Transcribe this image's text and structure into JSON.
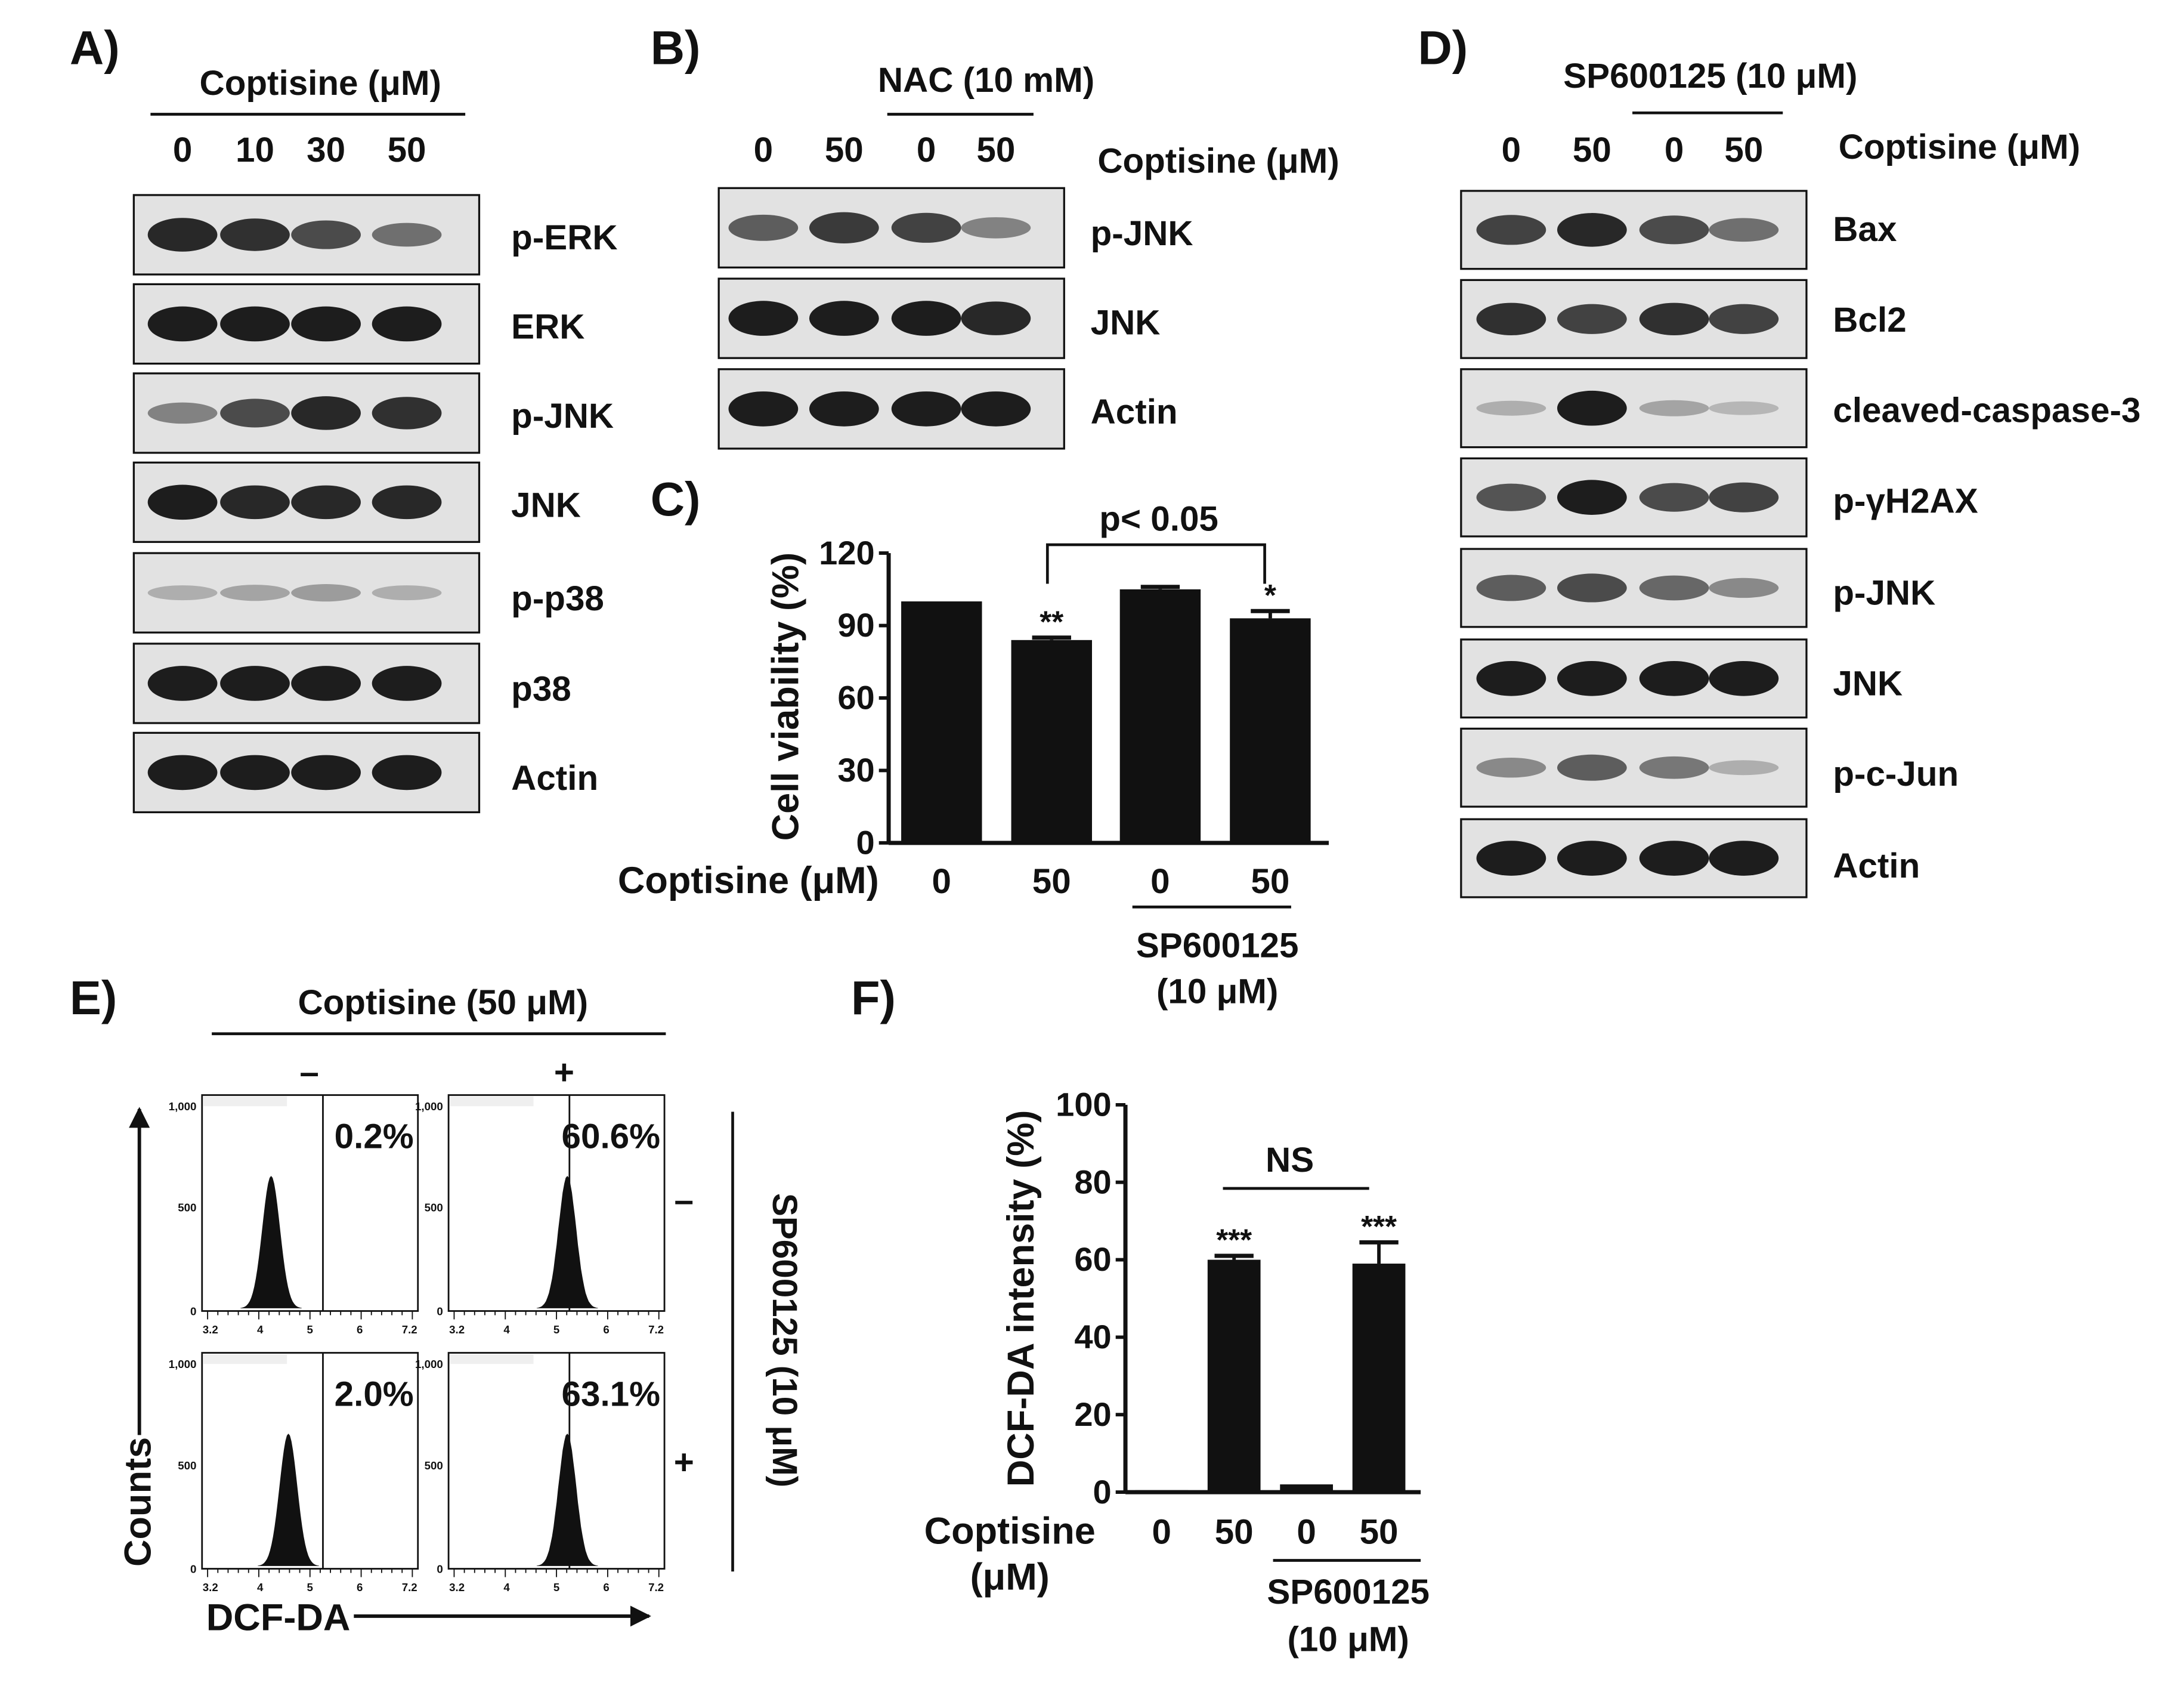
{
  "colors": {
    "ink": "#111111",
    "blot_background": "#e2e2e2",
    "band": "#151515"
  },
  "panel_letters": [
    "A)",
    "B)",
    "C)",
    "D)",
    "E)",
    "F)"
  ],
  "panel_a": {
    "treatment": "Coptisine (μM)",
    "doses": [
      "0",
      "10",
      "30",
      "50"
    ],
    "blots": [
      {
        "label": "p-ERK",
        "band_intensity": [
          0.9,
          0.85,
          0.7,
          0.5
        ]
      },
      {
        "label": "ERK",
        "band_intensity": [
          0.95,
          0.95,
          0.95,
          0.95
        ]
      },
      {
        "label": "p-JNK",
        "band_intensity": [
          0.4,
          0.7,
          0.9,
          0.85
        ]
      },
      {
        "label": "JNK",
        "band_intensity": [
          0.95,
          0.9,
          0.9,
          0.9
        ]
      },
      {
        "label": "p-p38",
        "band_intensity": [
          0.15,
          0.2,
          0.25,
          0.15
        ]
      },
      {
        "label": "p38",
        "band_intensity": [
          0.95,
          0.95,
          0.95,
          0.95
        ]
      },
      {
        "label": "Actin",
        "band_intensity": [
          0.95,
          0.95,
          0.95,
          0.95
        ]
      }
    ]
  },
  "panel_b": {
    "group_label": "NAC (10 mM)",
    "doses": [
      "0",
      "50",
      "0",
      "50"
    ],
    "treatment": "Coptisine (μM)",
    "blots": [
      {
        "label": "p-JNK",
        "band_intensity": [
          0.6,
          0.8,
          0.75,
          0.4
        ]
      },
      {
        "label": "JNK",
        "band_intensity": [
          0.95,
          0.95,
          0.95,
          0.9
        ]
      },
      {
        "label": "Actin",
        "band_intensity": [
          0.95,
          0.95,
          0.95,
          0.95
        ]
      }
    ]
  },
  "panel_d": {
    "group_label": "SP600125 (10 μM)",
    "doses": [
      "0",
      "50",
      "0",
      "50"
    ],
    "treatment": "Coptisine (μM)",
    "blots": [
      {
        "label": "Bax",
        "band_intensity": [
          0.75,
          0.9,
          0.7,
          0.5
        ]
      },
      {
        "label": "Bcl2",
        "band_intensity": [
          0.85,
          0.75,
          0.85,
          0.75
        ]
      },
      {
        "label": "cleaved-caspase-3",
        "band_intensity": [
          0.15,
          0.95,
          0.2,
          0.1
        ]
      },
      {
        "label": "p-γH2AX",
        "band_intensity": [
          0.65,
          0.95,
          0.7,
          0.75
        ]
      },
      {
        "label": "p-JNK",
        "band_intensity": [
          0.6,
          0.7,
          0.55,
          0.35
        ]
      },
      {
        "label": "JNK",
        "band_intensity": [
          0.95,
          0.95,
          0.95,
          0.95
        ]
      },
      {
        "label": "p-c-Jun",
        "band_intensity": [
          0.35,
          0.6,
          0.45,
          0.15
        ]
      },
      {
        "label": "Actin",
        "band_intensity": [
          0.95,
          0.95,
          0.95,
          0.95
        ]
      }
    ]
  },
  "panel_e": {
    "top_label": "Coptisine (50 μM)",
    "col_signs": [
      "–",
      "+"
    ],
    "side_label": "SP600125 (10 μM)",
    "row_signs": [
      "–",
      "+"
    ],
    "y_axis_label": "Counts",
    "x_axis_label": "DCF-DA",
    "histograms": [
      {
        "percent": "0.2%",
        "peak_shift": 0.32
      },
      {
        "percent": "60.6%",
        "peak_shift": 0.55
      },
      {
        "percent": "2.0%",
        "peak_shift": 0.4
      },
      {
        "percent": "63.1%",
        "peak_shift": 0.55
      }
    ],
    "y_ticks": [
      "1,000",
      "500",
      "0"
    ],
    "x_ticks": [
      "3.2",
      "4",
      "5",
      "6",
      "7.2"
    ]
  },
  "chart_data": [
    {
      "type": "bar",
      "panel": "C)",
      "ylabel": "Cell viability (%)",
      "ylim": [
        0,
        120
      ],
      "yticks": [
        "0",
        "30",
        "60",
        "90",
        "120"
      ],
      "x_label": "Coptisine (μM)",
      "categories": [
        "0",
        "50",
        "0",
        "50"
      ],
      "values": [
        100,
        84,
        105,
        93
      ],
      "errors": [
        0,
        1,
        1,
        3
      ],
      "significance": [
        "",
        "**",
        "",
        "*"
      ],
      "group_label_lines": [
        "SP600125",
        "(10 μM)"
      ],
      "comparison": "p< 0.05",
      "grid": false
    },
    {
      "type": "bar",
      "panel": "F)",
      "ylabel": "DCF-DA intensity (%)",
      "ylim": [
        0,
        100
      ],
      "yticks": [
        "0",
        "20",
        "40",
        "60",
        "80",
        "100"
      ],
      "x_label_lines": [
        "Coptisine",
        "(μM)"
      ],
      "categories": [
        "0",
        "50",
        "0",
        "50"
      ],
      "values": [
        0.5,
        60,
        2,
        59
      ],
      "errors": [
        0,
        1,
        0,
        5.5
      ],
      "significance": [
        "",
        "***",
        "",
        "***"
      ],
      "group_label_lines": [
        "SP600125",
        "(10 μM)"
      ],
      "comparison": "NS",
      "grid": false
    }
  ]
}
